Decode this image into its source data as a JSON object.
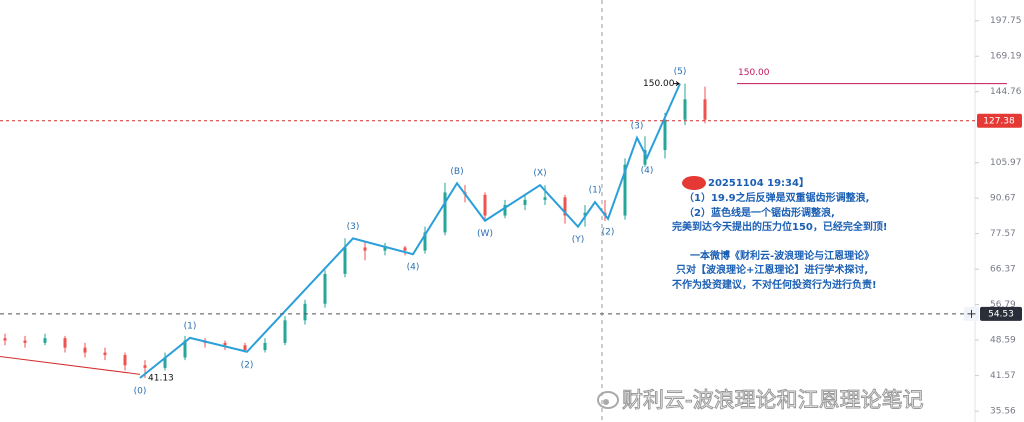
{
  "chart_data": {
    "type": "candlestick",
    "log_scale": true,
    "xlim": [
      0,
      195
    ],
    "ylim": [
      33.9,
      216.6
    ],
    "yticks": [
      197.75,
      169.19,
      144.76,
      105.97,
      90.67,
      77.57,
      66.37,
      56.79,
      48.59,
      41.57,
      35.56
    ],
    "up_color": "#26a69a",
    "down_color": "#ef5350",
    "candles": {
      "x": [
        1,
        5,
        9,
        13,
        17,
        21,
        25,
        29,
        33,
        37,
        41,
        45,
        49,
        53,
        57,
        61,
        65,
        69,
        73,
        77,
        81,
        85,
        89,
        93,
        97,
        101,
        105,
        109,
        113,
        117,
        121,
        125,
        129,
        133,
        137,
        141
      ],
      "open": [
        49,
        48.5,
        48,
        49,
        47,
        46,
        45.5,
        43.5,
        43,
        45,
        48.5,
        48,
        47.5,
        46.5,
        48,
        53,
        57,
        65,
        73,
        72,
        73,
        72,
        78,
        93,
        92,
        84,
        88,
        90,
        91,
        84,
        85,
        84,
        105,
        112,
        128,
        140
      ],
      "high": [
        50,
        49.5,
        50,
        49.5,
        48,
        47,
        46,
        44.5,
        46,
        49.5,
        49,
        48.5,
        48,
        49,
        54,
        58,
        66,
        76,
        75,
        74.5,
        73.5,
        80,
        97,
        96,
        93,
        90,
        92,
        96,
        92,
        88,
        90,
        108,
        119,
        132,
        150,
        148
      ],
      "low": [
        47.5,
        47,
        47.5,
        46,
        45,
        44.5,
        42.5,
        41.13,
        42.5,
        44.5,
        47,
        46.5,
        46,
        46,
        47.5,
        52,
        56,
        64,
        69,
        70.5,
        70.5,
        71,
        77,
        89,
        82,
        83,
        86,
        88,
        81,
        80,
        82,
        82.5,
        104,
        108,
        125,
        126
      ],
      "close": [
        48.5,
        48,
        49,
        47,
        46,
        45.5,
        43.5,
        43,
        45,
        48.5,
        48,
        47.5,
        46.5,
        48,
        53,
        57,
        65,
        73,
        72,
        73,
        72,
        78,
        93,
        92,
        84,
        88,
        90,
        91,
        84,
        85,
        84,
        105,
        112,
        128,
        140,
        128
      ]
    },
    "wave": {
      "color": "#2b9fd9",
      "x": [
        28,
        38,
        49.4,
        70.6,
        82.6,
        91.4,
        97,
        108,
        115.6,
        119,
        121.6,
        127.4,
        129.4,
        136
      ],
      "values": [
        41.13,
        49.07,
        46.16,
        75.96,
        70.87,
        96.8,
        82.1,
        96.0,
        80.0,
        89.1,
        82.8,
        118.2,
        108.3,
        150
      ],
      "labels": [
        "(0)",
        "(1)",
        "(2)",
        "(3)",
        "(4)",
        "(B)",
        "(W)",
        "(X)",
        "(Y)",
        "(1)",
        "(2)",
        "(3)",
        "(4)",
        "(5)"
      ]
    },
    "trendline": {
      "color": "#d32f2f",
      "x": [
        0,
        28
      ],
      "values": [
        45.2,
        41.8
      ]
    },
    "low_label": 41.13,
    "target_line": {
      "value": 150,
      "label": "150.00",
      "color": "#c2185b"
    },
    "current_price": 127.38,
    "crosshair_price": 54.53,
    "crosshair_x": 120.4,
    "annotation": {
      "lines": [
        "20251104 19:34】",
        "（1）19.9之后反弹是双重锯齿形调整浪,",
        "（2）蓝色线是一个锯齿形调整浪,",
        "完美到达今天提出的压力位150，已经完全到顶!",
        "一本微博《财利云-波浪理论与江恩理论》",
        "只对【波浪理论+江恩理论】进行学术探讨,",
        "不作为投资建议，不对任何投资行为进行负责!"
      ]
    },
    "watermark": "财利云-波浪理论和江恩理论笔记"
  }
}
